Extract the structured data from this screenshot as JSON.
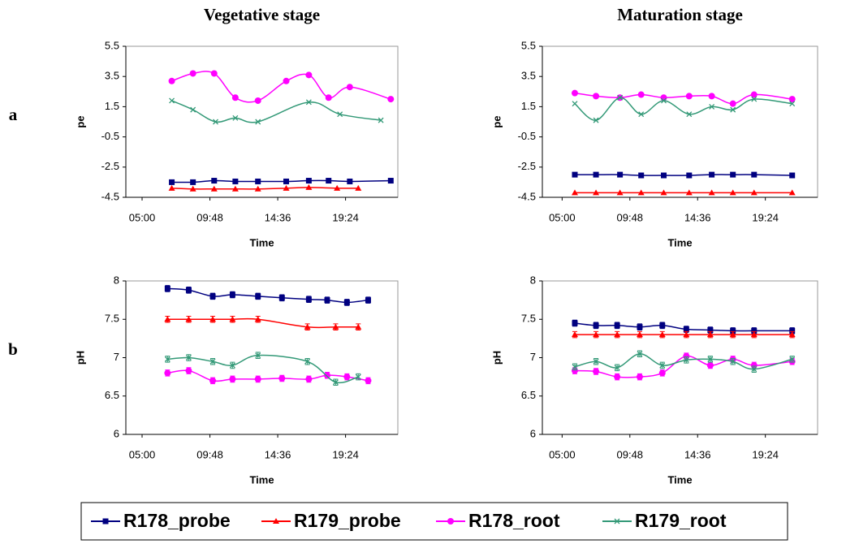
{
  "chart_data": [
    {
      "type": "line",
      "title": "Vegetative stage",
      "panel_label": "a",
      "ylabel": "pe",
      "xlabel": "Time",
      "xlim": [
        3.85,
        23.1
      ],
      "xticks": [
        {
          "value": 5,
          "label": "05:00"
        },
        {
          "value": 9.8,
          "label": "09:48"
        },
        {
          "value": 14.6,
          "label": "14:36"
        },
        {
          "value": 19.4,
          "label": "19:24"
        }
      ],
      "ylim": [
        -4.5,
        5.5
      ],
      "yticks": [
        -4.5,
        -2.5,
        -0.5,
        1.5,
        3.5,
        5.5
      ],
      "series": [
        {
          "name": "R178_probe",
          "color": "#000080",
          "marker": "square",
          "x": [
            7.1,
            8.6,
            10.1,
            11.6,
            13.2,
            15.2,
            16.8,
            18.2,
            19.7,
            22.6
          ],
          "values": [
            -3.5,
            -3.5,
            -3.4,
            -3.45,
            -3.45,
            -3.45,
            -3.4,
            -3.4,
            -3.45,
            -3.4
          ]
        },
        {
          "name": "R179_probe",
          "color": "#ff0000",
          "marker": "triangle",
          "x": [
            7.1,
            8.6,
            10.1,
            11.6,
            13.2,
            15.2,
            16.8,
            18.8,
            20.3
          ],
          "values": [
            -3.9,
            -3.95,
            -3.95,
            -3.95,
            -3.95,
            -3.9,
            -3.85,
            -3.9,
            -3.9
          ]
        },
        {
          "name": "R178_root",
          "color": "#ff00ff",
          "marker": "circle",
          "x": [
            7.1,
            8.6,
            10.1,
            11.6,
            13.2,
            15.2,
            16.8,
            18.2,
            19.7,
            22.6
          ],
          "values": [
            3.2,
            3.7,
            3.7,
            2.1,
            1.9,
            3.2,
            3.6,
            2.1,
            2.8,
            2.0
          ]
        },
        {
          "name": "R179_root",
          "color": "#339977",
          "marker": "cross",
          "x": [
            7.1,
            8.6,
            10.2,
            11.6,
            13.2,
            16.8,
            19.0,
            21.9
          ],
          "values": [
            1.9,
            1.3,
            0.5,
            0.75,
            0.5,
            1.8,
            1.0,
            0.6
          ]
        }
      ]
    },
    {
      "type": "line",
      "title": "Maturation stage",
      "ylabel": "pe",
      "xlabel": "Time",
      "xlim": [
        3.6,
        23.1
      ],
      "xticks": [
        {
          "value": 5,
          "label": "05:00"
        },
        {
          "value": 9.8,
          "label": "09:48"
        },
        {
          "value": 14.6,
          "label": "14:36"
        },
        {
          "value": 19.4,
          "label": "19:24"
        }
      ],
      "ylim": [
        -4.5,
        5.5
      ],
      "yticks": [
        -4.5,
        -2.5,
        -0.5,
        1.5,
        3.5,
        5.5
      ],
      "series": [
        {
          "name": "R178_probe",
          "color": "#000080",
          "marker": "square",
          "x": [
            5.9,
            7.4,
            9.1,
            10.6,
            12.2,
            14.0,
            15.6,
            17.1,
            18.6,
            21.3
          ],
          "values": [
            -3.0,
            -3.0,
            -3.0,
            -3.05,
            -3.05,
            -3.05,
            -3.0,
            -3.0,
            -3.0,
            -3.05
          ]
        },
        {
          "name": "R179_probe",
          "color": "#ff0000",
          "marker": "triangle",
          "x": [
            5.9,
            7.4,
            9.1,
            10.6,
            12.2,
            14.0,
            15.6,
            17.1,
            18.6,
            21.3
          ],
          "values": [
            -4.2,
            -4.2,
            -4.2,
            -4.2,
            -4.2,
            -4.2,
            -4.2,
            -4.2,
            -4.2,
            -4.2
          ]
        },
        {
          "name": "R178_root",
          "color": "#ff00ff",
          "marker": "circle",
          "x": [
            5.9,
            7.4,
            9.1,
            10.6,
            12.2,
            14.0,
            15.6,
            17.1,
            18.6,
            21.3
          ],
          "values": [
            2.4,
            2.2,
            2.1,
            2.3,
            2.1,
            2.2,
            2.2,
            1.7,
            2.3,
            2.0
          ]
        },
        {
          "name": "R179_root",
          "color": "#339977",
          "marker": "cross",
          "x": [
            5.9,
            7.4,
            9.1,
            10.6,
            12.2,
            14.0,
            15.6,
            17.1,
            18.6,
            21.3
          ],
          "values": [
            1.7,
            0.6,
            2.1,
            1.0,
            1.9,
            1.0,
            1.5,
            1.3,
            2.0,
            1.7
          ]
        }
      ]
    },
    {
      "type": "line",
      "panel_label": "b",
      "ylabel": "pH",
      "xlabel": "Time",
      "xlim": [
        3.85,
        23.1
      ],
      "xticks": [
        {
          "value": 5,
          "label": "05:00"
        },
        {
          "value": 9.8,
          "label": "09:48"
        },
        {
          "value": 14.6,
          "label": "14:36"
        },
        {
          "value": 19.4,
          "label": "19:24"
        }
      ],
      "ylim": [
        6,
        8
      ],
      "yticks": [
        6,
        6.5,
        7,
        7.5,
        8
      ],
      "series": [
        {
          "name": "R178_probe",
          "color": "#000080",
          "marker": "square",
          "error": 0.04,
          "x": [
            6.8,
            8.3,
            10,
            11.4,
            13.2,
            14.9,
            16.8,
            18.1,
            19.5,
            21
          ],
          "values": [
            7.9,
            7.88,
            7.8,
            7.82,
            7.8,
            7.78,
            7.76,
            7.75,
            7.72,
            7.75
          ]
        },
        {
          "name": "R179_probe",
          "color": "#ff0000",
          "marker": "triangle",
          "error": 0.04,
          "x": [
            6.8,
            8.3,
            10,
            11.4,
            13.2,
            16.7,
            18.7,
            20.3
          ],
          "values": [
            7.5,
            7.5,
            7.5,
            7.5,
            7.5,
            7.4,
            7.4,
            7.4
          ]
        },
        {
          "name": "R178_root",
          "color": "#ff00ff",
          "marker": "circle",
          "error": 0.04,
          "x": [
            6.8,
            8.3,
            10,
            11.4,
            13.2,
            14.9,
            16.8,
            18.1,
            19.5,
            21
          ],
          "values": [
            6.8,
            6.83,
            6.7,
            6.72,
            6.72,
            6.73,
            6.72,
            6.77,
            6.75,
            6.7
          ]
        },
        {
          "name": "R179_root",
          "color": "#339977",
          "marker": "cross",
          "error": 0.04,
          "x": [
            6.8,
            8.3,
            10,
            11.4,
            13.2,
            16.7,
            18.7,
            20.3
          ],
          "values": [
            6.98,
            7.0,
            6.95,
            6.9,
            7.03,
            6.95,
            6.68,
            6.75
          ]
        }
      ]
    },
    {
      "type": "line",
      "ylabel": "pH",
      "xlabel": "Time",
      "xlim": [
        3.6,
        23.1
      ],
      "xticks": [
        {
          "value": 5,
          "label": "05:00"
        },
        {
          "value": 9.8,
          "label": "09:48"
        },
        {
          "value": 14.6,
          "label": "14:36"
        },
        {
          "value": 19.4,
          "label": "19:24"
        }
      ],
      "ylim": [
        6,
        8
      ],
      "yticks": [
        6,
        6.5,
        7,
        7.5,
        8
      ],
      "series": [
        {
          "name": "R178_probe",
          "color": "#000080",
          "marker": "square",
          "error": 0.04,
          "x": [
            5.9,
            7.4,
            8.9,
            10.5,
            12.1,
            13.8,
            15.5,
            17.1,
            18.6,
            21.3
          ],
          "values": [
            7.45,
            7.42,
            7.42,
            7.4,
            7.42,
            7.37,
            7.36,
            7.35,
            7.35,
            7.35
          ]
        },
        {
          "name": "R179_probe",
          "color": "#ff0000",
          "marker": "triangle",
          "error": 0.04,
          "x": [
            5.9,
            7.4,
            8.9,
            10.5,
            12.1,
            13.8,
            15.5,
            17.1,
            18.6,
            21.3
          ],
          "values": [
            7.3,
            7.3,
            7.3,
            7.3,
            7.3,
            7.3,
            7.3,
            7.3,
            7.3,
            7.3
          ]
        },
        {
          "name": "R178_root",
          "color": "#ff00ff",
          "marker": "circle",
          "error": 0.04,
          "x": [
            5.9,
            7.4,
            8.9,
            10.5,
            12.1,
            13.8,
            15.5,
            17.1,
            18.6,
            21.3
          ],
          "values": [
            6.83,
            6.82,
            6.75,
            6.75,
            6.8,
            7.02,
            6.9,
            6.98,
            6.9,
            6.95
          ]
        },
        {
          "name": "R179_root",
          "color": "#339977",
          "marker": "cross",
          "error": 0.04,
          "x": [
            5.9,
            7.4,
            8.9,
            10.5,
            12.1,
            13.8,
            15.5,
            17.1,
            18.6,
            21.3
          ],
          "values": [
            6.88,
            6.95,
            6.87,
            7.05,
            6.9,
            6.97,
            6.98,
            6.95,
            6.85,
            6.98
          ]
        }
      ]
    }
  ]
}
